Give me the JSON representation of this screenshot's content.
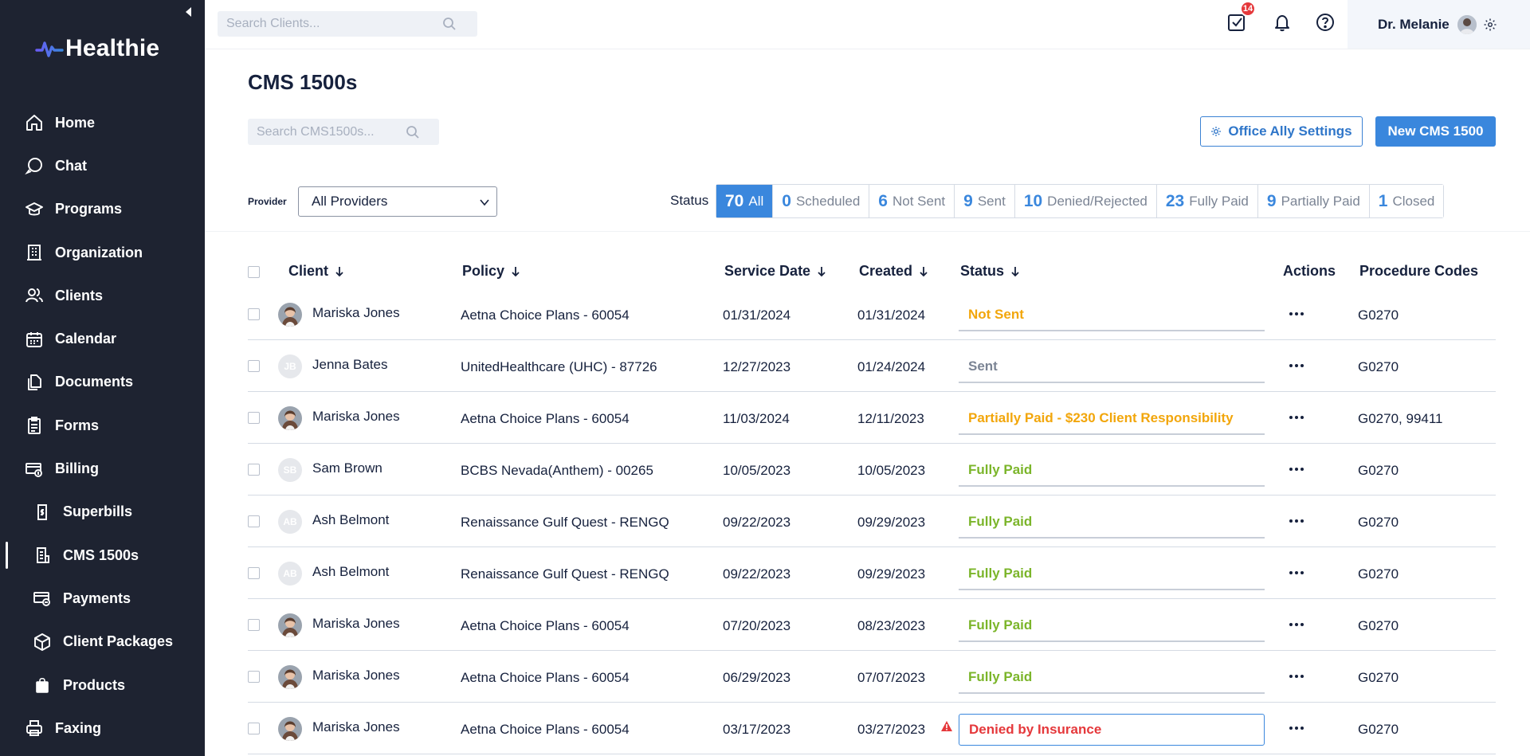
{
  "brand": {
    "name": "Healthie"
  },
  "sidebar": {
    "items": [
      {
        "label": "Home",
        "icon": "home-icon"
      },
      {
        "label": "Chat",
        "icon": "chat-icon"
      },
      {
        "label": "Programs",
        "icon": "programs-icon"
      },
      {
        "label": "Organization",
        "icon": "organization-icon"
      },
      {
        "label": "Clients",
        "icon": "clients-icon"
      },
      {
        "label": "Calendar",
        "icon": "calendar-icon"
      },
      {
        "label": "Documents",
        "icon": "documents-icon"
      },
      {
        "label": "Forms",
        "icon": "forms-icon"
      },
      {
        "label": "Billing",
        "icon": "billing-icon"
      },
      {
        "label": "Superbills",
        "icon": "superbills-icon"
      },
      {
        "label": "CMS 1500s",
        "icon": "cms1500-icon"
      },
      {
        "label": "Payments",
        "icon": "payments-icon"
      },
      {
        "label": "Client Packages",
        "icon": "packages-icon"
      },
      {
        "label": "Products",
        "icon": "products-icon"
      },
      {
        "label": "Faxing",
        "icon": "fax-icon"
      }
    ]
  },
  "topbar": {
    "search_placeholder": "Search Clients...",
    "tasks_badge": "14",
    "user_name": "Dr. Melanie"
  },
  "page": {
    "title": "CMS 1500s",
    "search_placeholder": "Search CMS1500s...",
    "office_ally_button": "Office Ally Settings",
    "new_button": "New CMS 1500",
    "provider_label": "Provider",
    "provider_selected": "All Providers",
    "status_label": "Status"
  },
  "status_tabs": [
    {
      "count": "70",
      "label": "All",
      "active": true
    },
    {
      "count": "0",
      "label": "Scheduled",
      "active": false
    },
    {
      "count": "6",
      "label": "Not Sent",
      "active": false
    },
    {
      "count": "9",
      "label": "Sent",
      "active": false
    },
    {
      "count": "10",
      "label": "Denied/Rejected",
      "active": false
    },
    {
      "count": "23",
      "label": "Fully Paid",
      "active": false
    },
    {
      "count": "9",
      "label": "Partially Paid",
      "active": false
    },
    {
      "count": "1",
      "label": "Closed",
      "active": false
    }
  ],
  "table": {
    "headers": {
      "client": "Client",
      "policy": "Policy",
      "service_date": "Service Date",
      "created": "Created",
      "status": "Status",
      "actions": "Actions",
      "procedure_codes": "Procedure Codes"
    },
    "rows": [
      {
        "client": "Mariska Jones",
        "avatar": "photo",
        "initials": "",
        "policy": "Aetna Choice Plans - 60054",
        "service_date": "01/31/2024",
        "created": "01/31/2024",
        "status": "Not Sent",
        "status_color": "orange",
        "codes": "G0270",
        "warning": false
      },
      {
        "client": "Jenna Bates",
        "avatar": "initials",
        "initials": "JB",
        "policy": "UnitedHealthcare (UHC) - 87726",
        "service_date": "12/27/2023",
        "created": "01/24/2024",
        "status": "Sent",
        "status_color": "gray",
        "codes": "G0270",
        "warning": false
      },
      {
        "client": "Mariska Jones",
        "avatar": "photo",
        "initials": "",
        "policy": "Aetna Choice Plans - 60054",
        "service_date": "11/03/2024",
        "created": "12/11/2023",
        "status": "Partially Paid - $230 Client Responsibility",
        "status_color": "orange",
        "codes": "G0270, 99411",
        "warning": false
      },
      {
        "client": "Sam Brown",
        "avatar": "initials",
        "initials": "SB",
        "policy": "BCBS Nevada(Anthem) - 00265",
        "service_date": "10/05/2023",
        "created": "10/05/2023",
        "status": "Fully Paid",
        "status_color": "green",
        "codes": "G0270",
        "warning": false
      },
      {
        "client": "Ash Belmont",
        "avatar": "initials",
        "initials": "AB",
        "policy": "Renaissance Gulf Quest - RENGQ",
        "service_date": "09/22/2023",
        "created": "09/29/2023",
        "status": "Fully Paid",
        "status_color": "green",
        "codes": "G0270",
        "warning": false
      },
      {
        "client": "Ash Belmont",
        "avatar": "initials",
        "initials": "AB",
        "policy": "Renaissance Gulf Quest - RENGQ",
        "service_date": "09/22/2023",
        "created": "09/29/2023",
        "status": "Fully Paid",
        "status_color": "green",
        "codes": "G0270",
        "warning": false
      },
      {
        "client": "Mariska Jones",
        "avatar": "photo",
        "initials": "",
        "policy": "Aetna Choice Plans - 60054",
        "service_date": "07/20/2023",
        "created": "08/23/2023",
        "status": "Fully Paid",
        "status_color": "green",
        "codes": "G0270",
        "warning": false
      },
      {
        "client": "Mariska Jones",
        "avatar": "photo",
        "initials": "",
        "policy": "Aetna Choice Plans - 60054",
        "service_date": "06/29/2023",
        "created": "07/07/2023",
        "status": "Fully Paid",
        "status_color": "green",
        "codes": "G0270",
        "warning": false
      },
      {
        "client": "Mariska Jones",
        "avatar": "photo",
        "initials": "",
        "policy": "Aetna Choice Plans - 60054",
        "service_date": "03/17/2023",
        "created": "03/27/2023",
        "status": "Denied by Insurance",
        "status_color": "red",
        "codes": "G0270",
        "warning": true
      }
    ]
  },
  "colors": {
    "sidebar_bg": "#1e2331",
    "accent_blue": "#3a87dd",
    "status_orange": "#f2a60b",
    "status_green": "#7bb52a",
    "status_red": "#e5383b",
    "status_gray": "#7b8494"
  }
}
